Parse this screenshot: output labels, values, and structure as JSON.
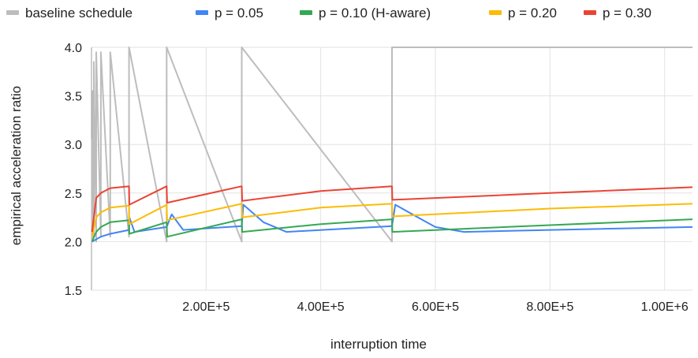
{
  "chart_data": {
    "type": "line",
    "title": "",
    "xlabel": "interruption time",
    "ylabel": "empirical acceleration ratio",
    "xlim": [
      0,
      1048576
    ],
    "ylim": [
      1.5,
      4.0
    ],
    "x_ticks": [
      200000,
      400000,
      600000,
      800000,
      1000000
    ],
    "x_tick_labels": [
      "2.00E+5",
      "4.00E+5",
      "6.00E+5",
      "8.00E+5",
      "1.00E+6"
    ],
    "y_ticks": [
      1.5,
      2.0,
      2.5,
      3.0,
      3.5,
      4.0
    ],
    "y_tick_labels": [
      "1.5",
      "2.0",
      "2.5",
      "3.0",
      "3.5",
      "4.0"
    ],
    "grid": true,
    "legend_position": "top",
    "legend": [
      "baseline schedule",
      "p = 0.05",
      "p = 0.10 (H-aware)",
      "p = 0.20",
      "p = 0.30"
    ],
    "series": [
      {
        "name": "baseline schedule",
        "color": "#bdbdbd",
        "x": [
          1024,
          1024,
          2048,
          2048,
          4096,
          4096,
          8192,
          8192,
          16384,
          16384,
          32768,
          32768,
          65536,
          65536,
          131072,
          131072,
          262144,
          262144,
          524288,
          524288,
          1048576
        ],
        "y": [
          2.0,
          3.05,
          2.0,
          3.55,
          2.05,
          3.85,
          2.0,
          3.95,
          2.05,
          3.95,
          2.05,
          3.95,
          2.05,
          4.0,
          2.0,
          4.0,
          2.0,
          4.0,
          2.0,
          4.0,
          4.0
        ]
      },
      {
        "name": "p = 0.05",
        "color": "#4285f4",
        "x": [
          1024,
          16384,
          32768,
          65536,
          66000,
          75000,
          131072,
          140000,
          160000,
          262144,
          265000,
          300000,
          340000,
          524288,
          530000,
          560000,
          600000,
          650000,
          800000,
          1048576
        ],
        "y": [
          2.0,
          2.05,
          2.08,
          2.12,
          2.25,
          2.1,
          2.15,
          2.28,
          2.12,
          2.16,
          2.38,
          2.2,
          2.1,
          2.16,
          2.38,
          2.28,
          2.15,
          2.1,
          2.12,
          2.15
        ]
      },
      {
        "name": "p = 0.10 (H-aware)",
        "color": "#34a853",
        "x": [
          1024,
          8192,
          16384,
          32768,
          65536,
          66000,
          131072,
          132000,
          262144,
          263000,
          400000,
          524288,
          525000,
          800000,
          1048576
        ],
        "y": [
          2.0,
          2.1,
          2.15,
          2.2,
          2.22,
          2.08,
          2.2,
          2.05,
          2.23,
          2.1,
          2.18,
          2.23,
          2.1,
          2.17,
          2.23
        ]
      },
      {
        "name": "p = 0.20",
        "color": "#fbbc04",
        "x": [
          1024,
          8192,
          16384,
          32768,
          65536,
          66000,
          131072,
          132000,
          262144,
          263000,
          400000,
          524288,
          525000,
          800000,
          1048576
        ],
        "y": [
          2.05,
          2.25,
          2.3,
          2.35,
          2.37,
          2.18,
          2.38,
          2.22,
          2.39,
          2.25,
          2.35,
          2.39,
          2.26,
          2.34,
          2.39
        ]
      },
      {
        "name": "p = 0.30",
        "color": "#ea4335",
        "x": [
          1024,
          8192,
          16384,
          32768,
          65536,
          66000,
          131072,
          132000,
          262144,
          263000,
          400000,
          524288,
          525000,
          800000,
          1048576
        ],
        "y": [
          2.1,
          2.45,
          2.5,
          2.55,
          2.57,
          2.38,
          2.57,
          2.4,
          2.57,
          2.42,
          2.52,
          2.57,
          2.43,
          2.5,
          2.56
        ]
      }
    ]
  }
}
